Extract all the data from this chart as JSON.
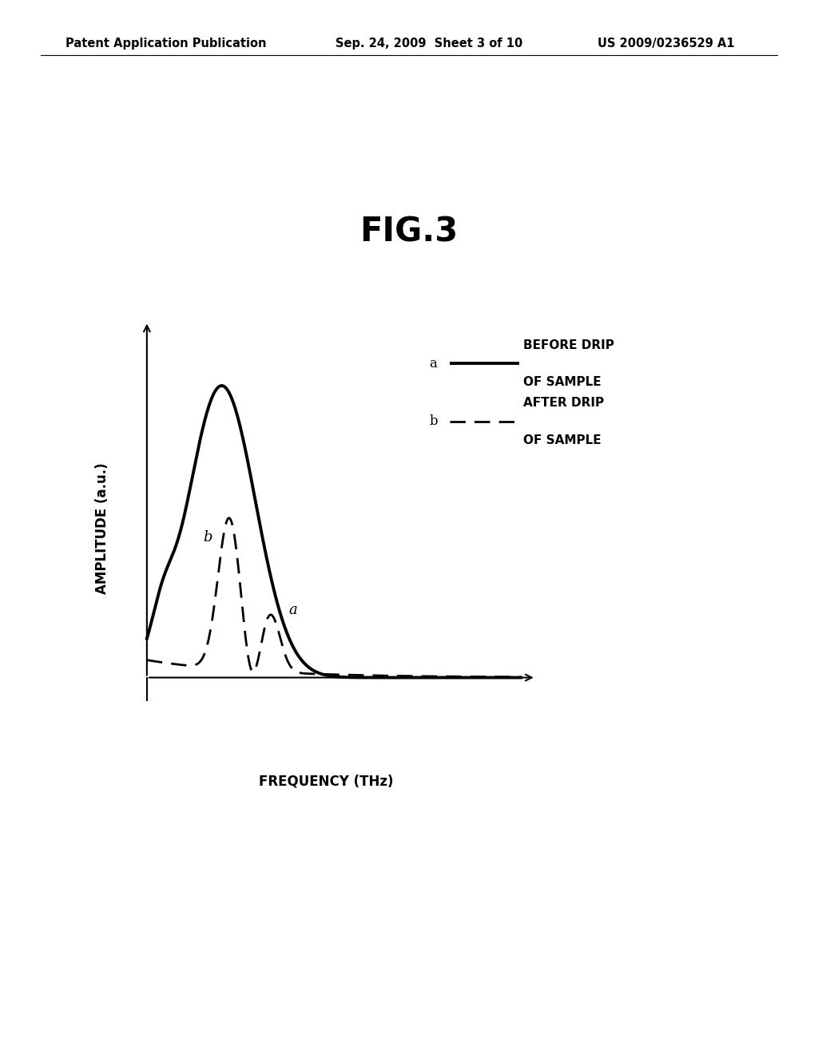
{
  "title": "FIG.3",
  "xlabel": "FREQUENCY (THz)",
  "ylabel": "AMPLITUDE (a.u.)",
  "header_left": "Patent Application Publication",
  "header_mid": "Sep. 24, 2009  Sheet 3 of 10",
  "header_right": "US 2009/0236529 A1",
  "legend_a_label1": "BEFORE DRIP",
  "legend_a_label2": "OF SAMPLE",
  "legend_b_label1": "AFTER DRIP",
  "legend_b_label2": "OF SAMPLE",
  "curve_a_color": "#000000",
  "curve_b_color": "#000000",
  "background_color": "#ffffff",
  "title_fontsize": 30,
  "header_fontsize": 10.5,
  "axis_label_fontsize": 12,
  "legend_fontsize": 11
}
